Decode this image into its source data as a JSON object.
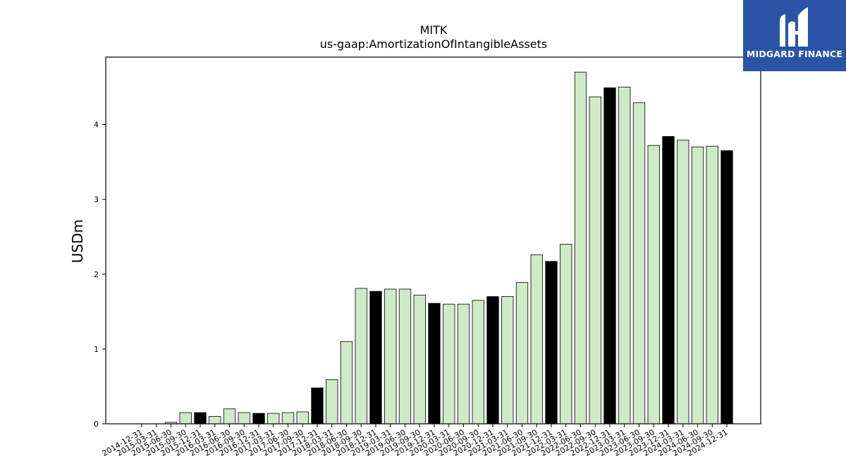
{
  "logo": {
    "text": "MIDGARD FINANCE",
    "colors": {
      "background": "#2a55a6",
      "mark": "#ffffff"
    }
  },
  "chart_data": {
    "type": "bar",
    "title": "MITK",
    "subtitle": "us-gaap:AmortizationOfIntangibleAssets",
    "xlabel": "",
    "ylabel": "USDm",
    "ylim": [
      0,
      4.9
    ],
    "yticks": [
      0,
      1,
      2,
      3,
      4
    ],
    "grid": false,
    "legend": "none",
    "colors": {
      "bar": "#cfeac6",
      "highlight": "#000000",
      "edge": "#000000"
    },
    "categories": [
      "2014-12-31",
      "2015-03-31",
      "2015-06-30",
      "2015-09-30",
      "2015-12-31",
      "2016-03-31",
      "2016-06-30",
      "2016-09-30",
      "2016-12-31",
      "2017-03-31",
      "2017-06-30",
      "2017-09-30",
      "2017-12-31",
      "2018-03-31",
      "2018-06-30",
      "2018-09-30",
      "2018-12-31",
      "2019-03-31",
      "2019-06-30",
      "2019-09-30",
      "2019-12-31",
      "2020-03-31",
      "2020-06-30",
      "2020-09-30",
      "2020-12-31",
      "2021-03-31",
      "2021-06-30",
      "2021-09-30",
      "2021-12-31",
      "2022-03-31",
      "2022-06-30",
      "2022-09-30",
      "2022-12-31",
      "2023-03-31",
      "2023-06-30",
      "2023-09-30",
      "2023-12-31",
      "2024-03-31",
      "2024-06-30",
      "2024-09-30",
      "2024-12-31"
    ],
    "values": [
      0,
      0,
      0.02,
      0.15,
      0.15,
      0.1,
      0.2,
      0.15,
      0.14,
      0.14,
      0.15,
      0.16,
      0.48,
      0.59,
      1.1,
      1.81,
      1.77,
      1.8,
      1.8,
      1.72,
      1.61,
      1.6,
      1.6,
      1.65,
      1.7,
      1.7,
      1.89,
      2.26,
      2.17,
      2.4,
      4.7,
      4.37,
      4.49,
      4.5,
      4.29,
      3.72,
      3.84,
      3.79,
      3.7,
      3.71,
      3.65
    ],
    "highlight": [
      false,
      false,
      false,
      false,
      true,
      false,
      false,
      false,
      true,
      false,
      false,
      false,
      true,
      false,
      false,
      false,
      true,
      false,
      false,
      false,
      true,
      false,
      false,
      false,
      true,
      false,
      false,
      false,
      true,
      false,
      false,
      false,
      true,
      false,
      false,
      false,
      true,
      false,
      false,
      false,
      true
    ]
  }
}
